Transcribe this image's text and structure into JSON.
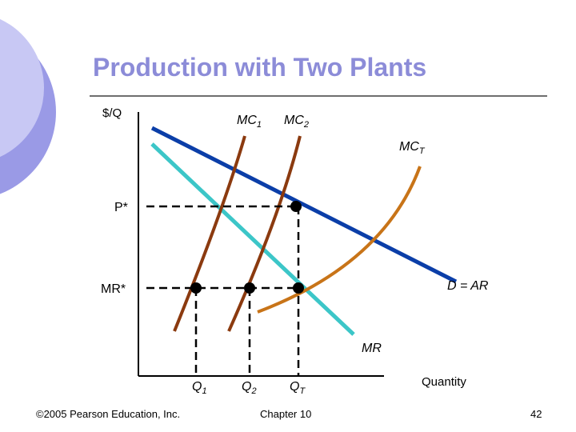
{
  "title": "Production with Two Plants",
  "footer": {
    "copyright": "©2005 Pearson Education, Inc.",
    "chapter": "Chapter 10",
    "page": "42"
  },
  "chart_data": {
    "type": "line",
    "ylabel": "$/Q",
    "xlabel": "Quantity",
    "grid": false,
    "curves": [
      {
        "name": "MC1",
        "base": "MC",
        "sub": "1",
        "color": "#8b3a0f"
      },
      {
        "name": "MC2",
        "base": "MC",
        "sub": "2",
        "color": "#8b3a0f"
      },
      {
        "name": "MCT",
        "base": "MC",
        "sub": "T",
        "color": "#c87418"
      },
      {
        "name": "D = AR",
        "color": "#0b3ea8"
      },
      {
        "name": "MR",
        "color": "#3cc6c8"
      }
    ],
    "y_ticks": [
      "P*",
      "MR*"
    ],
    "x_ticks": [
      {
        "base": "Q",
        "sub": "1"
      },
      {
        "base": "Q",
        "sub": "2"
      },
      {
        "base": "Q",
        "sub": "T"
      }
    ]
  }
}
